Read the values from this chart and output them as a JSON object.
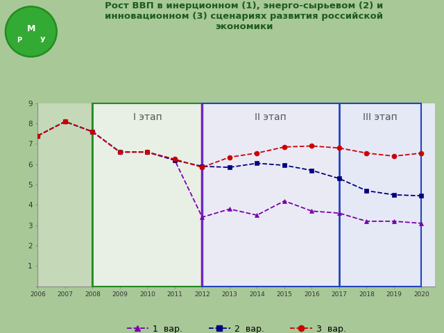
{
  "title": "Рост ВВП в инерционном (1), энерго-сырьевом (2) и\nинновационном (3) сценариях развития российской\nэкономики",
  "years": [
    2006,
    2007,
    2008,
    2009,
    2010,
    2011,
    2012,
    2013,
    2014,
    2015,
    2016,
    2017,
    2018,
    2019,
    2020
  ],
  "var1": [
    7.4,
    8.1,
    7.6,
    6.6,
    6.6,
    6.2,
    3.4,
    3.8,
    3.5,
    4.2,
    3.7,
    3.6,
    3.2,
    3.2,
    3.1
  ],
  "var2": [
    7.4,
    8.1,
    7.6,
    6.6,
    6.6,
    6.2,
    5.9,
    5.85,
    6.05,
    5.95,
    5.7,
    5.3,
    4.7,
    4.5,
    4.45
  ],
  "var3": [
    7.4,
    8.1,
    7.6,
    6.6,
    6.6,
    6.25,
    5.85,
    6.35,
    6.55,
    6.85,
    6.9,
    6.8,
    6.55,
    6.4,
    6.55
  ],
  "ylim": [
    0,
    9
  ],
  "yticks": [
    0,
    1,
    2,
    3,
    4,
    5,
    6,
    7,
    8,
    9
  ],
  "bg_outer": "#a8c898",
  "phase0_bg": "#c5d8b8",
  "phase1_bg": "#e8efe5",
  "phase2_bg": "#eaeaf5",
  "phase3_bg": "#e5e8f5",
  "phase1_border_color": "#228B22",
  "phase2_border_color": "#dd00dd",
  "phase3_border_color": "#2244bb",
  "color_var1": "#7700aa",
  "color_var2": "#000080",
  "color_var3": "#cc0000",
  "legend_labels": [
    "1  вар.",
    "2  вар.",
    "3  вар."
  ],
  "stage_labels": [
    "I этап",
    "II этап",
    "III этап"
  ],
  "title_color": "#1a5c1a",
  "tick_color": "#333333",
  "spine_color": "#888888"
}
